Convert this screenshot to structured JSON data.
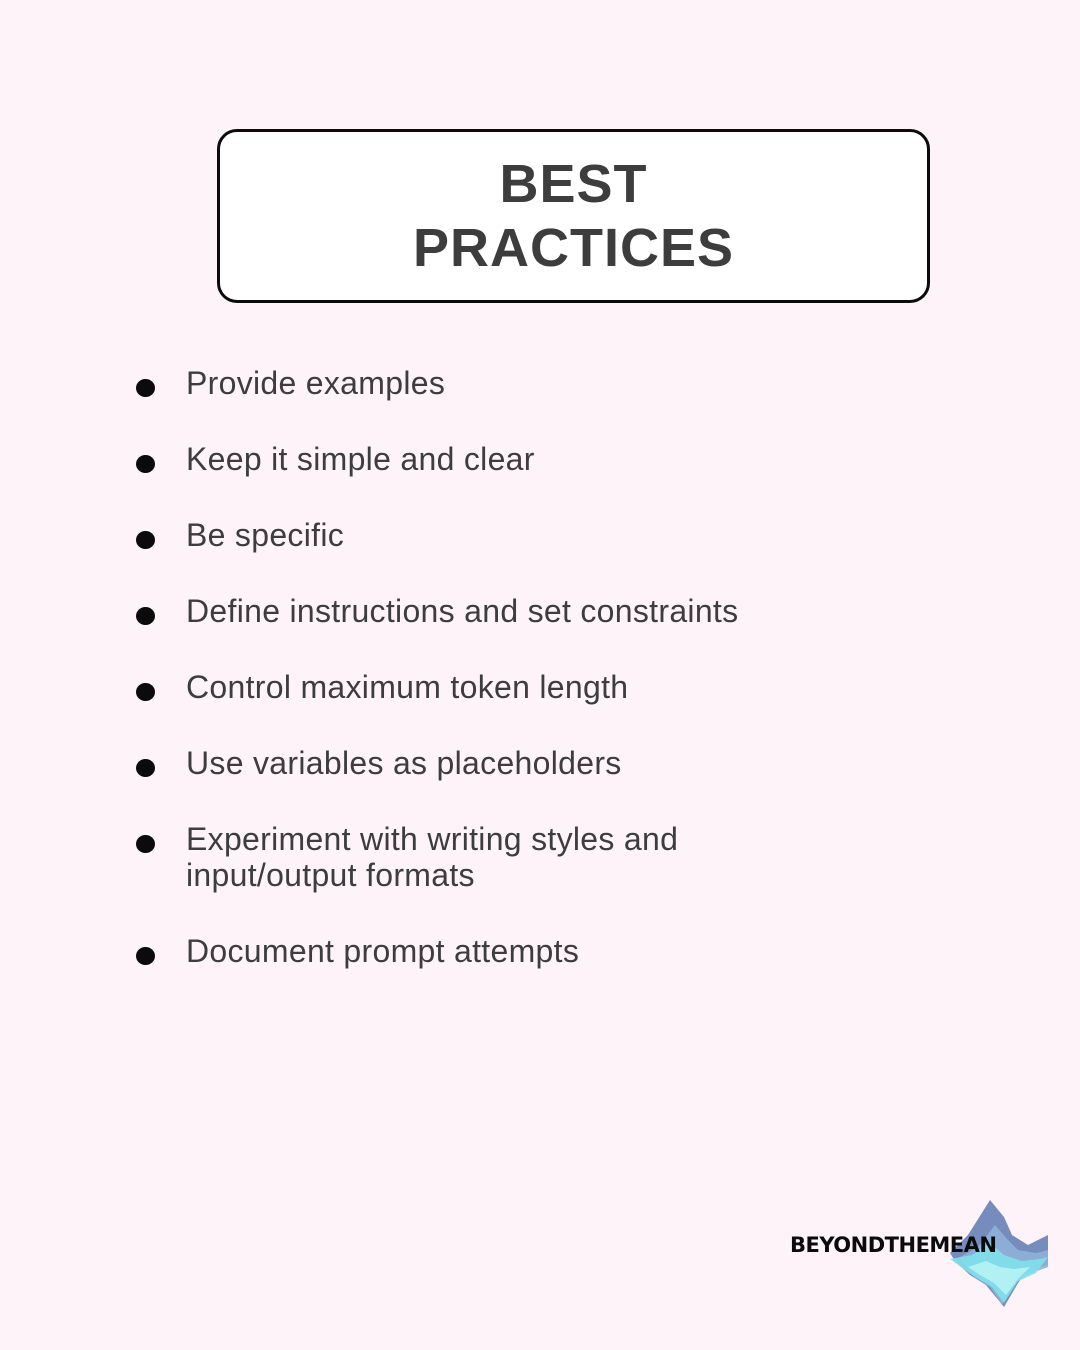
{
  "title": {
    "line1": "BEST",
    "line2": "PRACTICES"
  },
  "practices": [
    "Provide examples",
    "Keep it simple and clear",
    "Be specific",
    "Define instructions and set constraints",
    "Control maximum token length",
    "Use variables as placeholders",
    "Experiment with writing styles and input/output formats",
    "Document prompt attempts"
  ],
  "logo": {
    "text": "BEYONDTHEMEAN",
    "icon": "mountain-icon",
    "colors": [
      "#6f86b8",
      "#8fb0d8",
      "#7fe0ea",
      "#b6f3f5"
    ]
  },
  "colors": {
    "background": "#fdf3f8",
    "text": "#3d3d3d",
    "border": "#0b0b0b",
    "box_fill": "#ffffff"
  }
}
